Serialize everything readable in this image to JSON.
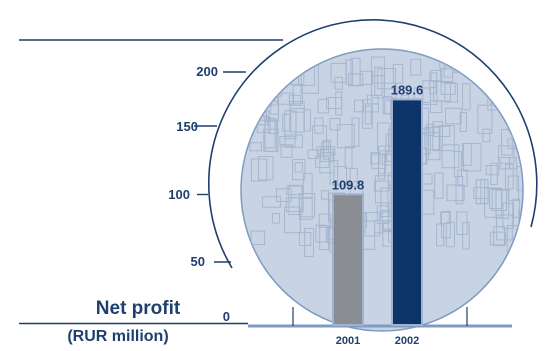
{
  "chart_data": {
    "type": "bar",
    "title_line1": "Net profit",
    "title_line2": "(RUR million)",
    "categories": [
      "2001",
      "2002"
    ],
    "values": [
      109.8,
      189.6
    ],
    "value_labels": [
      "109.8",
      "189.6"
    ],
    "ylim": [
      0,
      200
    ],
    "yticks": [
      {
        "value": 0,
        "label": "0"
      },
      {
        "value": 50,
        "label": "50"
      },
      {
        "value": 100,
        "label": "100"
      },
      {
        "value": 150,
        "label": "150"
      },
      {
        "value": 200,
        "label": "200"
      }
    ],
    "grid": false,
    "colors": {
      "bar_2001": "#8a8d91",
      "bar_2002": "#0d3468",
      "circle_fill": "#c8d3e3",
      "lines": "#1f3f6e",
      "baseline": "#7f9bc2"
    }
  }
}
